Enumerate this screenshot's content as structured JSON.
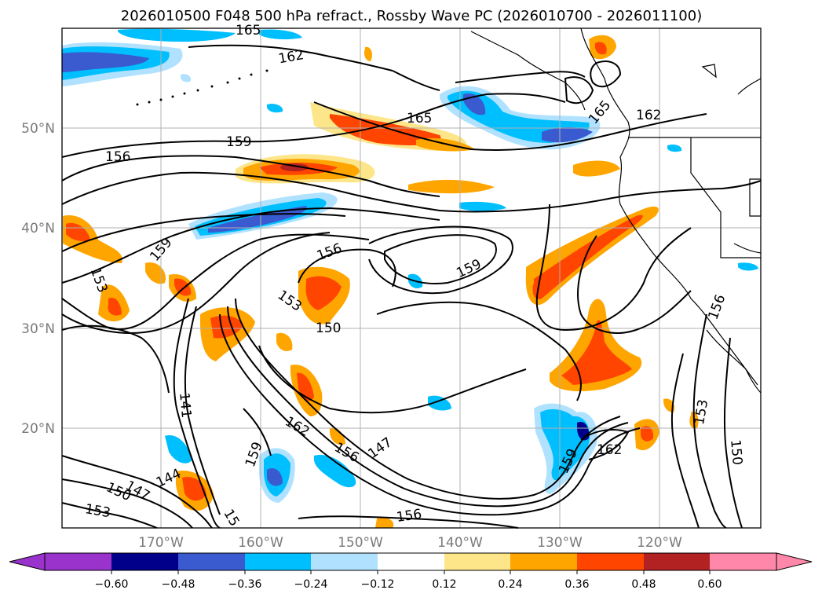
{
  "title": "2026010500 F048 500 hPa refract., Rossby Wave PC (2026010700 - 2026011100)",
  "lat_labels": [
    "50°N",
    "40°N",
    "30°N",
    "20°N"
  ],
  "lon_labels": [
    "170°W",
    "160°W",
    "150°W",
    "140°W",
    "130°W",
    "120°W"
  ],
  "contour_labels": [
    "162",
    "165",
    "165",
    "159",
    "156",
    "165",
    "162",
    "159",
    "153",
    "156",
    "159",
    "153",
    "150",
    "141",
    "162",
    "156",
    "147",
    "159",
    "144",
    "147",
    "150",
    "153",
    "159",
    "162",
    "153",
    "150",
    "156",
    "15",
    "156"
  ],
  "colorbar": {
    "ticks": [
      "−0.60",
      "−0.48",
      "−0.36",
      "−0.24",
      "−0.12",
      "0.12",
      "0.24",
      "0.36",
      "0.48",
      "0.60"
    ],
    "colors": [
      "#9933cc",
      "#00008b",
      "#3a5bcf",
      "#00bfff",
      "#b0e2ff",
      "#ffffff",
      "#fde68a",
      "#ffa500",
      "#ff4500",
      "#b22222",
      "#ff88aa"
    ]
  }
}
